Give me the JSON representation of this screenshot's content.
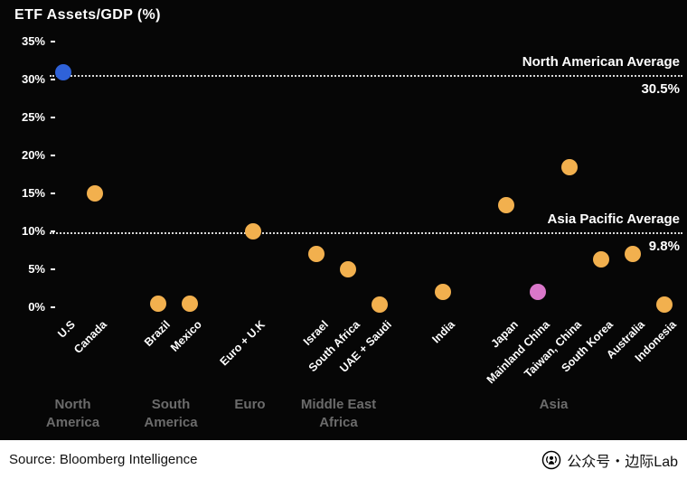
{
  "header": {
    "title": "ETF Assets/GDP (%)"
  },
  "footer": {
    "source": "Source: Bloomberg Intelligence",
    "wechat_label": "公众号・边际Lab",
    "wechat_icon": "wechat-official-account-icon"
  },
  "colors": {
    "background": "#060606",
    "text": "#ffffff",
    "region_label": "#6b6b6b",
    "dot_default": "#f2b04e",
    "dot_us": "#2f62d9",
    "dot_mainland_china": "#d977c9",
    "reference_line": "#d8d8d8"
  },
  "chart_data": {
    "type": "scatter",
    "title": "ETF Assets/GDP (%)",
    "xlabel": "",
    "ylabel": "ETF Assets/GDP (%)",
    "ylim": [
      0,
      35
    ],
    "grid": false,
    "legend": "none",
    "y_ticks": [
      {
        "v": 0,
        "label": "0%"
      },
      {
        "v": 5,
        "label": "5%"
      },
      {
        "v": 10,
        "label": "10%"
      },
      {
        "v": 15,
        "label": "15%"
      },
      {
        "v": 20,
        "label": "20%"
      },
      {
        "v": 25,
        "label": "25%"
      },
      {
        "v": 30,
        "label": "30%"
      },
      {
        "v": 35,
        "label": "35%"
      }
    ],
    "reference_lines": [
      {
        "name": "North American Average",
        "value": 30.5,
        "value_label": "30.5%"
      },
      {
        "name": "Asia Pacific Average",
        "value": 9.8,
        "value_label": "9.8%"
      }
    ],
    "points": [
      {
        "label": "U.S",
        "value": 31.0,
        "color": "#2f62d9",
        "slot": 0
      },
      {
        "label": "Canada",
        "value": 15.0,
        "color": "#f2b04e",
        "slot": 1
      },
      {
        "label": "Brazil",
        "value": 0.5,
        "color": "#f2b04e",
        "slot": 3
      },
      {
        "label": "Mexico",
        "value": 0.5,
        "color": "#f2b04e",
        "slot": 4
      },
      {
        "label": "Euro + U.K",
        "value": 10.0,
        "color": "#f2b04e",
        "slot": 6
      },
      {
        "label": "Israel",
        "value": 7.0,
        "color": "#f2b04e",
        "slot": 8
      },
      {
        "label": "South Africa",
        "value": 5.0,
        "color": "#f2b04e",
        "slot": 9
      },
      {
        "label": "UAE + Saudi",
        "value": 0.3,
        "color": "#f2b04e",
        "slot": 10
      },
      {
        "label": "India",
        "value": 2.0,
        "color": "#f2b04e",
        "slot": 12
      },
      {
        "label": "Japan",
        "value": 13.5,
        "color": "#f2b04e",
        "slot": 14
      },
      {
        "label": "Mainland China",
        "value": 2.0,
        "color": "#d977c9",
        "slot": 15
      },
      {
        "label": "Taiwan, China",
        "value": 18.5,
        "color": "#f2b04e",
        "slot": 16
      },
      {
        "label": "South Korea",
        "value": 6.3,
        "color": "#f2b04e",
        "slot": 17
      },
      {
        "label": "Australia",
        "value": 7.0,
        "color": "#f2b04e",
        "slot": 18
      },
      {
        "label": "Indonesia",
        "value": 0.3,
        "color": "#f2b04e",
        "slot": 19
      }
    ],
    "groups": [
      {
        "label": "North America",
        "lines": [
          "North",
          "America"
        ],
        "center_slot": 0.3
      },
      {
        "label": "South America",
        "lines": [
          "South",
          "America"
        ],
        "center_slot": 3.4
      },
      {
        "label": "Euro",
        "lines": [
          "Euro"
        ],
        "center_slot": 5.9
      },
      {
        "label": "Middle East Africa",
        "lines": [
          "Middle East",
          "Africa"
        ],
        "center_slot": 8.7
      },
      {
        "label": "Asia",
        "lines": [
          "Asia"
        ],
        "center_slot": 15.5
      }
    ]
  }
}
